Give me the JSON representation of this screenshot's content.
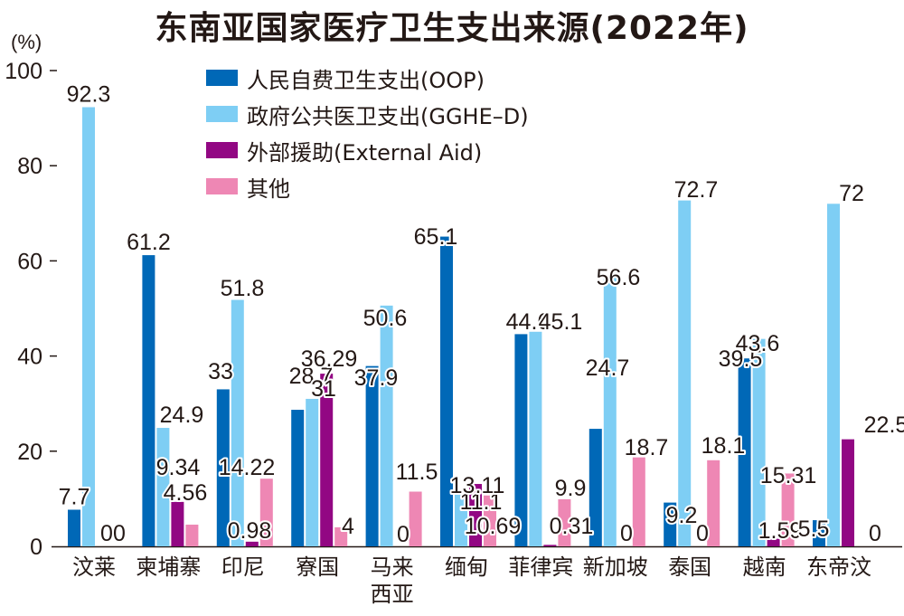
{
  "chart_data": {
    "type": "bar",
    "title": "东南亚国家医疗卫生支出来源(2022年)",
    "ylabel": "(%)",
    "xlabel": "",
    "ylim": [
      0,
      100
    ],
    "yticks": [
      0,
      20,
      40,
      60,
      80,
      100
    ],
    "grid": false,
    "legend_position": "top-center",
    "categories": [
      [
        "汶莱"
      ],
      [
        "柬埔寨"
      ],
      [
        "印尼"
      ],
      [
        "寮国"
      ],
      [
        "马来",
        "西亚"
      ],
      [
        "缅甸"
      ],
      [
        "菲律宾"
      ],
      [
        "新加坡"
      ],
      [
        "泰国"
      ],
      [
        "越南"
      ],
      [
        "东帝汶"
      ]
    ],
    "series": [
      {
        "name": "人民自费卫生支出(OOP)",
        "color": "#0068b7",
        "values": [
          7.7,
          61.2,
          33,
          28.7,
          37.9,
          65.1,
          44.6,
          24.7,
          9.2,
          39.5,
          5.5
        ],
        "labels": [
          "7.7",
          "61.2",
          "33",
          "28.7",
          "37.9",
          "65.1",
          "44.6",
          "24.7",
          "9.2",
          "39.5",
          "5.5"
        ]
      },
      {
        "name": "政府公共医卫支出(GGHE–D)",
        "color": "#7ecef4",
        "values": [
          92.3,
          24.9,
          51.8,
          31,
          50.6,
          11.1,
          45.1,
          56.6,
          72.7,
          43.6,
          72
        ],
        "labels": [
          "92.3",
          "24.9",
          "51.8",
          "31",
          "50.6",
          "11.1",
          "45.1",
          "56.6",
          "72.7",
          "43.6",
          "72"
        ]
      },
      {
        "name": "外部援助(External Aid)",
        "color": "#920783",
        "values": [
          0,
          9.34,
          0.98,
          36.29,
          0,
          13.11,
          0.31,
          0,
          0,
          1.59,
          22.5
        ],
        "labels": [
          "0",
          "9.34",
          "0.98",
          "36.29",
          "0",
          "13.11",
          "0.31",
          "0",
          "0",
          "1.59",
          "22.5"
        ]
      },
      {
        "name": "其他",
        "color": "#ee87b4",
        "values": [
          0,
          4.56,
          14.22,
          4,
          11.5,
          10.69,
          9.9,
          18.7,
          18.1,
          15.31,
          0
        ],
        "labels": [
          "0",
          "4.56",
          "14.22",
          "4",
          "11.5",
          "10.69",
          "9.9",
          "18.7",
          "18.1",
          "15.31",
          "0"
        ]
      }
    ]
  }
}
